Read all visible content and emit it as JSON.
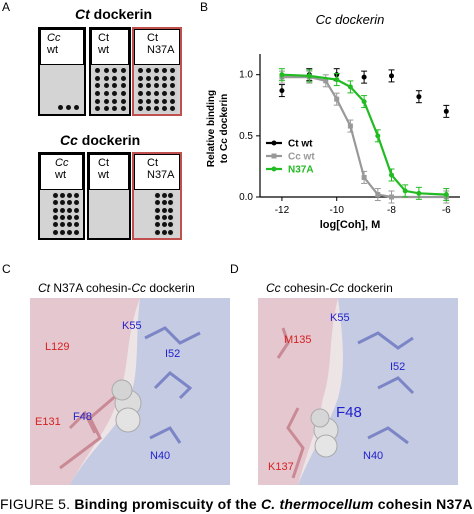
{
  "panel_a": {
    "label": "A",
    "blot1": {
      "title_italic": "Ct",
      "title_rest": " dockerin",
      "lanes": [
        {
          "line1": "Cc",
          "line2": "wt"
        },
        {
          "line1": "Ct",
          "line2": "wt"
        },
        {
          "line1": "Ct",
          "line2": "N37A"
        }
      ]
    },
    "blot2": {
      "title_italic": "Cc",
      "title_rest": " dockerin",
      "lanes": [
        {
          "line1": "Cc",
          "line2": "wt"
        },
        {
          "line1": "Ct",
          "line2": "wt"
        },
        {
          "line1": "Ct",
          "line2": "N37A"
        }
      ]
    }
  },
  "panel_b": {
    "label": "B",
    "chart_data": {
      "type": "line",
      "title": "Cc dockerin",
      "xlabel": "log[Coh], M",
      "ylabel_line1": "Relative binding",
      "ylabel_line2": "to Cc dockerin",
      "xlim": [
        -12.8,
        -5.5
      ],
      "ylim": [
        0,
        1.12
      ],
      "xticks": [
        "-12",
        "-10",
        "-8",
        "-6"
      ],
      "yticks": [
        "0.0",
        "0.5",
        "1.0"
      ],
      "legend_position": "bottom-left",
      "series": [
        {
          "name": "Ct wt",
          "color": "#000000",
          "x": [
            -12,
            -11,
            -10,
            -9,
            -8,
            -7,
            -6
          ],
          "y": [
            0.87,
            1.0,
            1.0,
            0.98,
            0.99,
            0.82,
            0.7
          ]
        },
        {
          "name": "Cc wt",
          "color": "#999999",
          "x": [
            -12,
            -11,
            -10.4,
            -10,
            -9.5,
            -9,
            -8.5,
            -8,
            -6
          ],
          "y": [
            0.98,
            0.98,
            0.95,
            0.8,
            0.58,
            0.16,
            0.02,
            0.0,
            0.0
          ]
        },
        {
          "name": "N37A",
          "color": "#22bb22",
          "x": [
            -12,
            -11,
            -10,
            -9.5,
            -9,
            -8.5,
            -8,
            -7.5,
            -7,
            -6
          ],
          "y": [
            1.0,
            0.99,
            0.96,
            0.9,
            0.78,
            0.5,
            0.18,
            0.05,
            0.03,
            0.02
          ]
        }
      ]
    }
  },
  "panel_c": {
    "label": "C",
    "title_italic1": "Ct",
    "title_mid": " N37A cohesin-",
    "title_italic2": "Cc",
    "title_end": " dockerin",
    "residues": {
      "k55": "K55",
      "l129": "L129",
      "i52": "I52",
      "f48": "F48",
      "e131": "E131",
      "n40": "N40"
    }
  },
  "panel_d": {
    "label": "D",
    "title_italic1": "Cc",
    "title_mid": " cohesin-",
    "title_italic2": "Cc",
    "title_end": " dockerin",
    "residues": {
      "k55": "K55",
      "m135": "M135",
      "i52": "I52",
      "f48": "F48",
      "n40": "N40",
      "k137": "K137"
    }
  },
  "caption": {
    "prefix": "FIGURE 5. ",
    "text": "Binding promiscuity of the ",
    "italic": "C. thermocellum",
    "suffix": " cohesin N37A"
  },
  "colors": {
    "pink": "#e5c8cf",
    "lavender": "#c5cbe3",
    "red_label": "#d62020",
    "blue_label": "#2222cc",
    "blot_red": "#c0504d"
  }
}
